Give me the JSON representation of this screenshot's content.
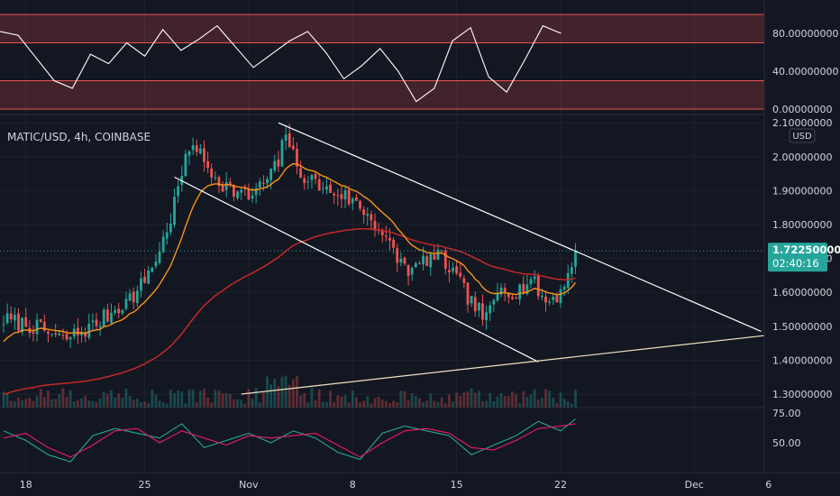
{
  "symbol_line": "MATIC/USD, 4h, COINBASE",
  "currency_badge": "USD",
  "last_price": {
    "value": "1.72250000",
    "countdown": "02:40:16"
  },
  "colors": {
    "background": "#131722",
    "grid": "#1e222d",
    "axis_text": "#d1d4dc",
    "candle_up": "#26a69a",
    "candle_down": "#ef5350",
    "ma_fast": "#f7931a",
    "ma_slow": "#c62828",
    "trendline": "#ffffff",
    "support_line": "#f0e0c0",
    "rsi_line": "#ffffff",
    "rsi_band": "#ef5350",
    "stoch_k": "#26a69a",
    "stoch_d": "#e91e63",
    "price_badge": "#26a69a"
  },
  "chart_data": [
    {
      "type": "line",
      "panel": "rsi",
      "ylim": [
        0,
        100
      ],
      "ticks": [
        "80.00000000",
        "40.00000000",
        "0.00000000"
      ],
      "tick_values": [
        80,
        40,
        0
      ],
      "bands": [
        [
          70,
          100
        ],
        [
          0,
          30
        ]
      ],
      "x": [
        0,
        4,
        8,
        12,
        16,
        20,
        24,
        28,
        32,
        36,
        40,
        44,
        48,
        52,
        56,
        60,
        64,
        68,
        72,
        76,
        80,
        84,
        88,
        92,
        96,
        100,
        104,
        108,
        112,
        116,
        120,
        124
      ],
      "values": [
        82,
        78,
        54,
        30,
        22,
        58,
        48,
        70,
        56,
        84,
        62,
        74,
        88,
        66,
        44,
        58,
        72,
        82,
        60,
        32,
        46,
        64,
        40,
        8,
        22,
        72,
        86,
        34,
        18,
        52,
        88,
        80
      ]
    },
    {
      "type": "candlestick",
      "panel": "price",
      "title": "MATIC/USD, 4h, COINBASE",
      "ylim": [
        1.25,
        2.12
      ],
      "ticks": [
        "2.10000000",
        "2.00000000",
        "1.90000000",
        "1.80000000",
        "1.70000000",
        "1.60000000",
        "1.50000000",
        "1.40000000",
        "1.30000000"
      ],
      "tick_values": [
        2.1,
        2.0,
        1.9,
        1.8,
        1.7,
        1.6,
        1.5,
        1.4,
        1.3
      ],
      "last_price": 1.7225,
      "x_labels": [
        {
          "label": "18",
          "bar": 6
        },
        {
          "label": "25",
          "bar": 38
        },
        {
          "label": "Nov",
          "bar": 66
        },
        {
          "label": "8",
          "bar": 94
        },
        {
          "label": "15",
          "bar": 122
        },
        {
          "label": "22",
          "bar": 150
        },
        {
          "label": "Dec",
          "bar": 186
        },
        {
          "label": "6",
          "bar": 206
        }
      ],
      "anchors": {
        "bars": [
          0,
          8,
          16,
          24,
          30,
          36,
          42,
          45,
          48,
          51,
          54,
          58,
          62,
          66,
          70,
          74,
          76,
          79,
          83,
          87,
          91,
          95,
          99,
          102,
          106,
          110,
          114,
          118,
          122,
          126,
          130,
          134,
          138,
          142,
          146,
          150,
          154
        ],
        "close": [
          1.52,
          1.5,
          1.46,
          1.5,
          1.55,
          1.6,
          1.72,
          1.82,
          1.95,
          2.05,
          1.98,
          1.93,
          1.9,
          1.88,
          1.92,
          1.98,
          2.08,
          1.96,
          1.93,
          1.9,
          1.89,
          1.86,
          1.82,
          1.77,
          1.7,
          1.66,
          1.7,
          1.7,
          1.64,
          1.57,
          1.52,
          1.62,
          1.6,
          1.64,
          1.57,
          1.6,
          1.72
        ]
      },
      "bar_count": 155,
      "series": [
        {
          "type": "line",
          "values_from": "ma_fast"
        },
        {
          "type": "line",
          "values_from": "ma_slow"
        }
      ],
      "trendlines": [
        {
          "from": {
            "bar": 74,
            "price": 2.1
          },
          "to": {
            "bar": 204,
            "price": 1.485
          }
        },
        {
          "from": {
            "bar": 46,
            "price": 1.94
          },
          "to": {
            "bar": 144,
            "price": 1.395
          }
        },
        {
          "from": {
            "bar": 64,
            "price": 1.3
          },
          "to": {
            "bar": 211,
            "price": 1.48
          }
        }
      ]
    },
    {
      "type": "line",
      "panel": "stochastic",
      "ylim": [
        30,
        78
      ],
      "ticks": [
        "75.00",
        "50.00"
      ],
      "tick_values": [
        75,
        50
      ],
      "x": [
        0,
        6,
        12,
        18,
        24,
        30,
        36,
        42,
        48,
        54,
        60,
        66,
        72,
        78,
        84,
        90,
        96,
        102,
        108,
        114,
        120,
        126,
        132,
        138,
        144,
        150,
        154
      ],
      "series": [
        {
          "values": [
            60,
            52,
            40,
            34,
            56,
            62,
            58,
            54,
            66,
            46,
            52,
            58,
            50,
            60,
            54,
            42,
            36,
            58,
            64,
            60,
            56,
            40,
            48,
            56,
            68,
            60,
            70
          ]
        },
        {
          "values": [
            54,
            58,
            46,
            38,
            48,
            60,
            62,
            50,
            60,
            54,
            48,
            56,
            54,
            56,
            58,
            48,
            38,
            50,
            60,
            62,
            58,
            46,
            44,
            52,
            62,
            64,
            66
          ]
        }
      ]
    }
  ]
}
